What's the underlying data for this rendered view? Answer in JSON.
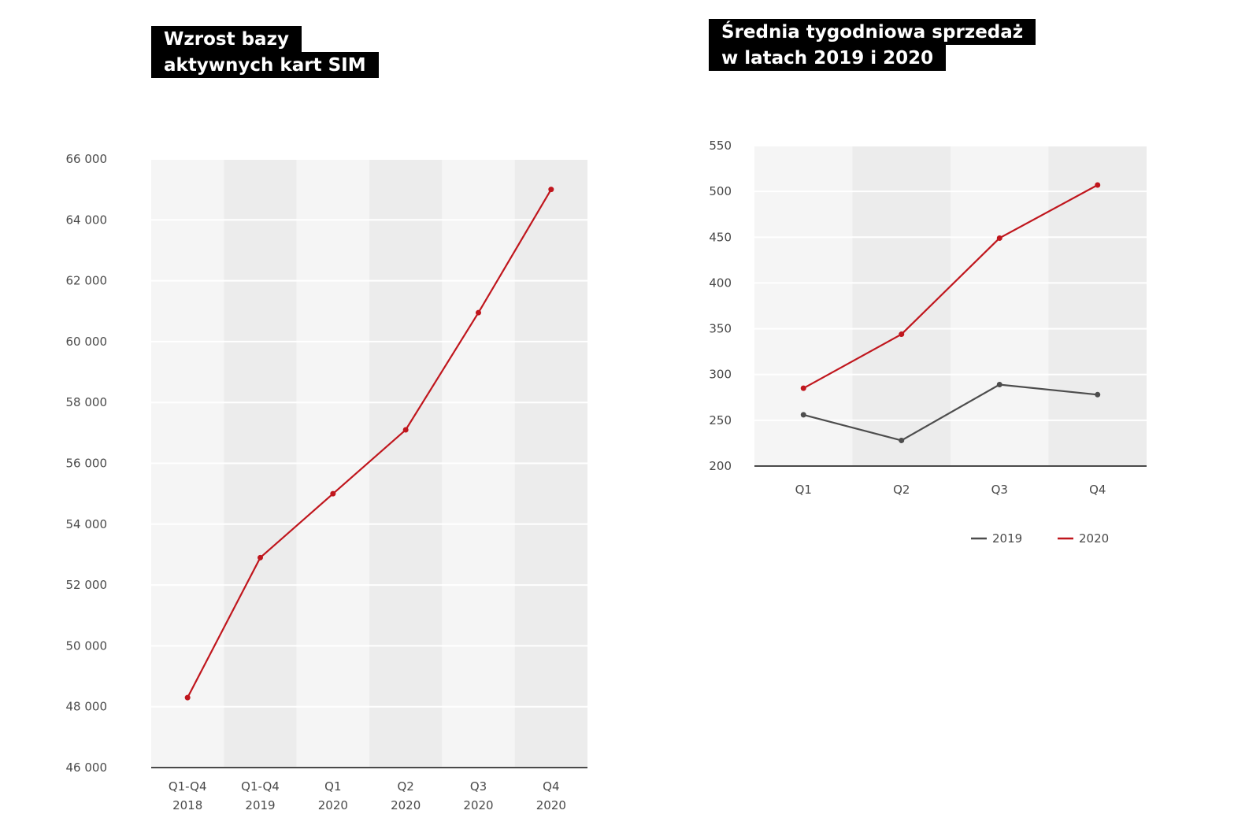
{
  "chart_data": [
    {
      "type": "line",
      "title": [
        "Wzrost bazy",
        "aktywnych kart SIM"
      ],
      "categories": [
        [
          "Q1-Q4",
          "2018"
        ],
        [
          "Q1-Q4",
          "2019"
        ],
        [
          "Q1",
          "2020"
        ],
        [
          "Q2",
          "2020"
        ],
        [
          "Q3",
          "2020"
        ],
        [
          "Q4",
          "2020"
        ]
      ],
      "yticks": [
        "46 000",
        "48 000",
        "50 000",
        "52 000",
        "54 000",
        "56 000",
        "58 000",
        "60 000",
        "62 000",
        "64 000",
        "66 000"
      ],
      "ylim": [
        46000,
        66000
      ],
      "series": [
        {
          "values": [
            48300,
            52900,
            55000,
            57100,
            60950,
            65000
          ],
          "color": "#c0161d"
        }
      ],
      "grid": true,
      "banded_columns": true
    },
    {
      "type": "line",
      "title": [
        "Średnia tygodniowa sprzedaż",
        "w latach 2019 i 2020"
      ],
      "categories": [
        "Q1",
        "Q2",
        "Q3",
        "Q4"
      ],
      "yticks": [
        "200",
        "250",
        "300",
        "350",
        "400",
        "450",
        "500",
        "550"
      ],
      "ylim": [
        200,
        550
      ],
      "series": [
        {
          "name": "2019",
          "values": [
            256,
            228,
            289,
            278
          ],
          "color": "#4d4d4d"
        },
        {
          "name": "2020",
          "values": [
            285,
            344,
            449,
            507
          ],
          "color": "#c0161d"
        }
      ],
      "grid": true,
      "banded_columns": true,
      "legend": "bottom"
    }
  ]
}
